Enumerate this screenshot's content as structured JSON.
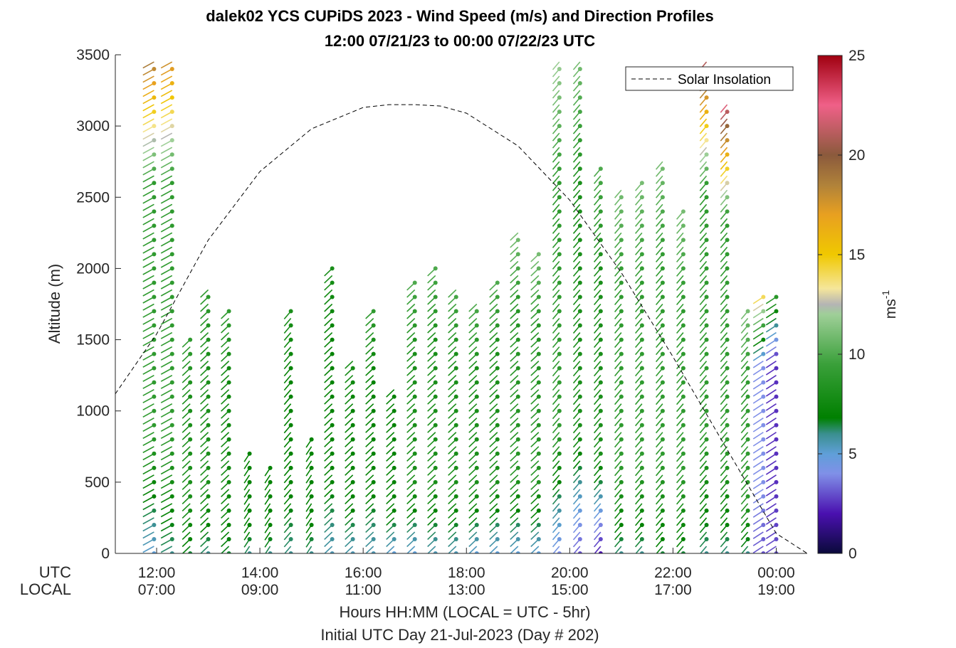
{
  "figure": {
    "title_line1": "dalek02 YCS CUPiDS 2023 - Wind Speed (m/s) and Direction Profiles",
    "title_line2": "12:00 07/21/23 to 00:00 07/22/23  UTC",
    "xlabel": "Hours HH:MM  (LOCAL = UTC - 5hr)",
    "xsublabel": "Initial UTC Day 21-Jul-2023 (Day # 202)",
    "row_label_utc": "UTC",
    "row_label_local": "LOCAL"
  },
  "chart_data": {
    "type": "wind-barb-profile",
    "ylabel": "Altitude (m)",
    "ylim": [
      0,
      3500
    ],
    "yticks": [
      0,
      500,
      1000,
      1500,
      2000,
      2500,
      3000,
      3500
    ],
    "xlim_hours_utc": [
      11.2,
      24.6
    ],
    "xticks": [
      {
        "hour": 12,
        "utc": "12:00",
        "local": "07:00"
      },
      {
        "hour": 14,
        "utc": "14:00",
        "local": "09:00"
      },
      {
        "hour": 16,
        "utc": "16:00",
        "local": "11:00"
      },
      {
        "hour": 18,
        "utc": "18:00",
        "local": "13:00"
      },
      {
        "hour": 20,
        "utc": "20:00",
        "local": "15:00"
      },
      {
        "hour": 22,
        "utc": "22:00",
        "local": "17:00"
      },
      {
        "hour": 24,
        "utc": "00:00",
        "local": "19:00"
      }
    ],
    "legend": {
      "label": "Solar Insolation",
      "position": "top-right"
    },
    "solar_insolation": {
      "hours": [
        11.2,
        12,
        13,
        14,
        15,
        16,
        16.5,
        17,
        17.5,
        18,
        19,
        20,
        21,
        22,
        23,
        24,
        24.6
      ],
      "altitude": [
        1120,
        1540,
        2200,
        2680,
        2980,
        3130,
        3150,
        3150,
        3140,
        3090,
        2860,
        2480,
        1970,
        1380,
        760,
        140,
        0
      ]
    },
    "colorbar": {
      "label": "ms",
      "label_exponent": "-1",
      "min": 0,
      "max": 25,
      "ticks": [
        0,
        5,
        10,
        15,
        20,
        25
      ],
      "colors": [
        {
          "v": 0,
          "c": "#0a0a3a"
        },
        {
          "v": 2,
          "c": "#4a10b0"
        },
        {
          "v": 4,
          "c": "#8090e8"
        },
        {
          "v": 5,
          "c": "#5f9fd8"
        },
        {
          "v": 6,
          "c": "#3a8f8f"
        },
        {
          "v": 6.8,
          "c": "#008000"
        },
        {
          "v": 9.5,
          "c": "#3aa03a"
        },
        {
          "v": 12,
          "c": "#9fcf98"
        },
        {
          "v": 12.5,
          "c": "#b4b4b4"
        },
        {
          "v": 13.3,
          "c": "#f5e69a"
        },
        {
          "v": 15,
          "c": "#f0c800"
        },
        {
          "v": 17,
          "c": "#e8a020"
        },
        {
          "v": 18.5,
          "c": "#b0823a"
        },
        {
          "v": 20,
          "c": "#8b5a3c"
        },
        {
          "v": 22.5,
          "c": "#f06088"
        },
        {
          "v": 25,
          "c": "#a00010"
        }
      ]
    },
    "profiles": [
      {
        "hour": 11.95,
        "top": 3480,
        "speed_low": 5,
        "speed_mid": 9,
        "speed_high": 19,
        "dir": 225
      },
      {
        "hour": 12.3,
        "top": 3480,
        "speed_low": 6,
        "speed_mid": 9,
        "speed_high": 18,
        "dir": 225
      },
      {
        "hour": 12.65,
        "top": 1500,
        "speed_low": 6.5,
        "speed_mid": 8,
        "speed_high": 9,
        "dir": 240
      },
      {
        "hour": 13.0,
        "top": 1850,
        "speed_low": 6,
        "speed_mid": 8,
        "speed_high": 9,
        "dir": 240
      },
      {
        "hour": 13.4,
        "top": 1700,
        "speed_low": 6.5,
        "speed_mid": 7.5,
        "speed_high": 9,
        "dir": 240
      },
      {
        "hour": 13.8,
        "top": 720,
        "speed_low": 6,
        "speed_mid": 7,
        "speed_high": 7,
        "dir": 250
      },
      {
        "hour": 14.2,
        "top": 620,
        "speed_low": 6,
        "speed_mid": 7,
        "speed_high": 7,
        "dir": 250
      },
      {
        "hour": 14.6,
        "top": 1700,
        "speed_low": 6,
        "speed_mid": 7,
        "speed_high": 8,
        "dir": 245
      },
      {
        "hour": 15.0,
        "top": 830,
        "speed_low": 6,
        "speed_mid": 7,
        "speed_high": 7,
        "dir": 250
      },
      {
        "hour": 15.4,
        "top": 2000,
        "speed_low": 5.5,
        "speed_mid": 7,
        "speed_high": 8,
        "dir": 240
      },
      {
        "hour": 15.8,
        "top": 1380,
        "speed_low": 5.5,
        "speed_mid": 7,
        "speed_high": 8,
        "dir": 240
      },
      {
        "hour": 16.2,
        "top": 1700,
        "speed_low": 5.5,
        "speed_mid": 7,
        "speed_high": 9,
        "dir": 240
      },
      {
        "hour": 16.6,
        "top": 1150,
        "speed_low": 5,
        "speed_mid": 7,
        "speed_high": 7,
        "dir": 240
      },
      {
        "hour": 17.0,
        "top": 1900,
        "speed_low": 5,
        "speed_mid": 8,
        "speed_high": 10,
        "dir": 240
      },
      {
        "hour": 17.4,
        "top": 2000,
        "speed_low": 5.5,
        "speed_mid": 8,
        "speed_high": 10,
        "dir": 240
      },
      {
        "hour": 17.8,
        "top": 1850,
        "speed_low": 5.5,
        "speed_mid": 8,
        "speed_high": 10,
        "dir": 240
      },
      {
        "hour": 18.2,
        "top": 1750,
        "speed_low": 5,
        "speed_mid": 8,
        "speed_high": 10,
        "dir": 240
      },
      {
        "hour": 18.6,
        "top": 1900,
        "speed_low": 5,
        "speed_mid": 8,
        "speed_high": 10,
        "dir": 240
      },
      {
        "hour": 19.0,
        "top": 2250,
        "speed_low": 5,
        "speed_mid": 8.5,
        "speed_high": 11,
        "dir": 240
      },
      {
        "hour": 19.4,
        "top": 2100,
        "speed_low": 5,
        "speed_mid": 8.5,
        "speed_high": 11,
        "dir": 240
      },
      {
        "hour": 19.8,
        "top": 3480,
        "speed_low": 4,
        "speed_mid": 9,
        "speed_high": 12,
        "dir": 245
      },
      {
        "hour": 20.2,
        "top": 3450,
        "speed_low": 3,
        "speed_mid": 8,
        "speed_high": 11,
        "dir": 245
      },
      {
        "hour": 20.6,
        "top": 2700,
        "speed_low": 2,
        "speed_mid": 8,
        "speed_high": 10,
        "dir": 245
      },
      {
        "hour": 21.0,
        "top": 2550,
        "speed_low": 6,
        "speed_mid": 9,
        "speed_high": 11,
        "dir": 245
      },
      {
        "hour": 21.4,
        "top": 2600,
        "speed_low": 6,
        "speed_mid": 9,
        "speed_high": 11,
        "dir": 245
      },
      {
        "hour": 21.8,
        "top": 2750,
        "speed_low": 6.5,
        "speed_mid": 9,
        "speed_high": 11,
        "dir": 245
      },
      {
        "hour": 22.2,
        "top": 2400,
        "speed_low": 6.5,
        "speed_mid": 9,
        "speed_high": 11,
        "dir": 245
      },
      {
        "hour": 22.65,
        "top": 3450,
        "speed_low": 6,
        "speed_mid": 9,
        "speed_high": 21,
        "dir": 245
      },
      {
        "hour": 23.05,
        "top": 3150,
        "speed_low": 6,
        "speed_mid": 9,
        "speed_high": 22,
        "dir": 245
      },
      {
        "hour": 23.45,
        "top": 1700,
        "speed_low": 6,
        "speed_mid": 9,
        "speed_high": 11,
        "dir": 245
      },
      {
        "hour": 23.75,
        "top": 1800,
        "speed_low": 3,
        "speed_mid": 4,
        "speed_high": 14,
        "dir": 230
      },
      {
        "hour": 24.0,
        "top": 1820,
        "speed_low": 3,
        "speed_mid": 2.5,
        "speed_high": 9,
        "dir": 230
      }
    ]
  }
}
